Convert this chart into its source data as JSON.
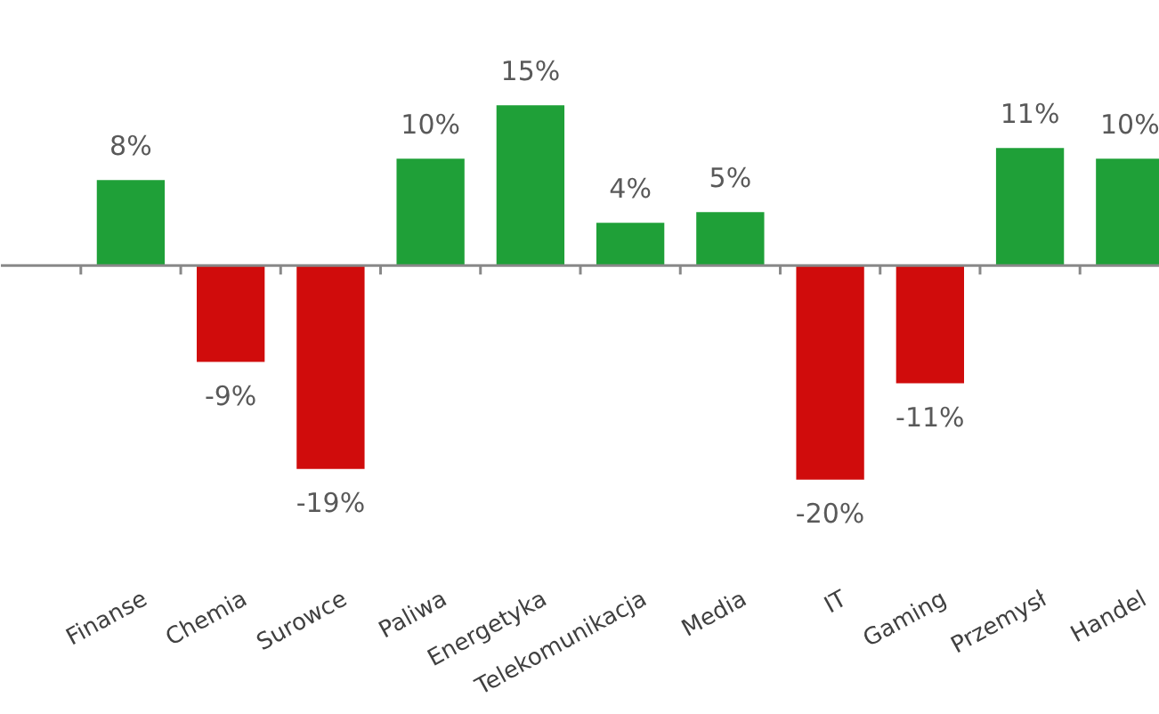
{
  "chart_data": {
    "type": "bar",
    "categories": [
      "Finanse",
      "Chemia",
      "Surowce",
      "Paliwa",
      "Energetyka",
      "Telekomunikacja",
      "Media",
      "IT",
      "Gaming",
      "Przemysł",
      "Handel"
    ],
    "values": [
      8,
      -9,
      -19,
      10,
      15,
      4,
      5,
      -20,
      -11,
      11,
      10
    ],
    "value_labels": [
      "8%",
      "-9%",
      "-19%",
      "10%",
      "15%",
      "4%",
      "5%",
      "-20%",
      "-11%",
      "11%",
      "10%"
    ],
    "colors": [
      "#1fa038",
      "#d00c0c",
      "#d00c0c",
      "#1fa038",
      "#1fa038",
      "#1fa038",
      "#1fa038",
      "#d00c0c",
      "#d00c0c",
      "#1fa038",
      "#1fa038"
    ]
  }
}
